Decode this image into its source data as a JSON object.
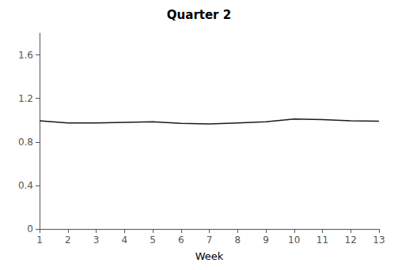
{
  "chart_data": {
    "type": "line",
    "title": "Quarter 2",
    "xlabel": "Week",
    "x": [
      1,
      2,
      3,
      4,
      5,
      6,
      7,
      8,
      9,
      10,
      11,
      12,
      13
    ],
    "values": [
      0.995,
      0.975,
      0.975,
      0.98,
      0.985,
      0.97,
      0.965,
      0.975,
      0.985,
      1.01,
      1.005,
      0.995,
      0.99
    ],
    "color": "#1a1a1a",
    "xlim": [
      1,
      13
    ],
    "xticks": [
      1,
      2,
      3,
      4,
      5,
      6,
      7,
      8,
      9,
      10,
      11,
      12,
      13
    ],
    "ylim": [
      0,
      1.8
    ],
    "yticks": [
      0,
      0.4,
      0.8,
      1.2,
      1.6
    ],
    "grid": false
  }
}
